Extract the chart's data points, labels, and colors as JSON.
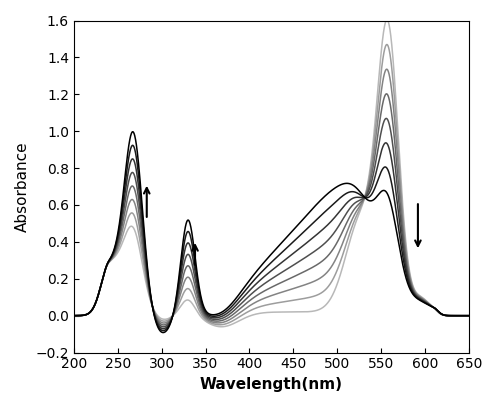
{
  "title": "",
  "xlabel": "Wavelength(nm)",
  "ylabel": "Absorbance",
  "xlim": [
    200,
    650
  ],
  "ylim": [
    -0.2,
    1.6
  ],
  "xticks": [
    200,
    250,
    300,
    350,
    400,
    450,
    500,
    550,
    600,
    650
  ],
  "yticks": [
    -0.2,
    0.0,
    0.2,
    0.4,
    0.6,
    0.8,
    1.0,
    1.2,
    1.4,
    1.6
  ],
  "n_curves": 8,
  "background_color": "#ffffff"
}
